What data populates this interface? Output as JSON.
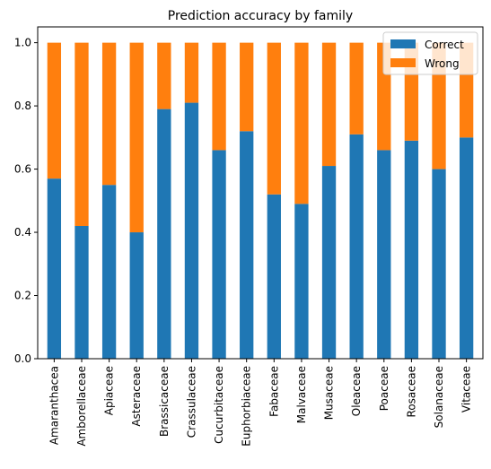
{
  "chart_data": {
    "type": "bar",
    "stacked": true,
    "title": "Prediction accuracy by family",
    "xlabel": "",
    "ylabel": "",
    "ylim": [
      0,
      1.05
    ],
    "yticks": [
      "0.0",
      "0.2",
      "0.4",
      "0.6",
      "0.8",
      "1.0"
    ],
    "categories": [
      "Amaranthacea",
      "Amborellaceae",
      "Apiaceae",
      "Asteraceae",
      "Brassicaceae",
      "Crassulaceae",
      "Cucurbitaceae",
      "Euphorbiaceae",
      "Fabaceae",
      "Malvaceae",
      "Musaceae",
      "Oleaceae",
      "Poaceae",
      "Rosaceae",
      "Solanaceae",
      "Vitaceae"
    ],
    "series": [
      {
        "name": "Correct",
        "color": "#1f77b4",
        "values": [
          0.57,
          0.42,
          0.55,
          0.4,
          0.79,
          0.81,
          0.66,
          0.72,
          0.52,
          0.49,
          0.61,
          0.71,
          0.66,
          0.69,
          0.6,
          0.7
        ]
      },
      {
        "name": "Wrong",
        "color": "#ff7f0e",
        "values": [
          0.43,
          0.58,
          0.45,
          0.6,
          0.21,
          0.19,
          0.34,
          0.28,
          0.48,
          0.51,
          0.39,
          0.29,
          0.34,
          0.31,
          0.4,
          0.3
        ]
      }
    ],
    "legend_position": "top-right",
    "grid": false
  }
}
